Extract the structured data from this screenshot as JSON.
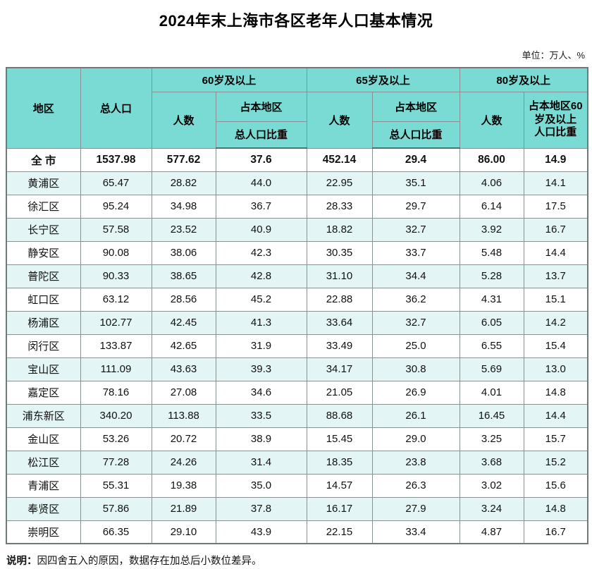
{
  "title": "2024年末上海市各区老年人口基本情况",
  "unit_note": "单位：万人、%",
  "colors": {
    "header_background": "#7adbd4",
    "stripe_row_background": "#e3f5f4",
    "grid_border": "#879393"
  },
  "table": {
    "header": {
      "region": "地区",
      "total_population": "总人口",
      "groups": [
        {
          "label": "60岁及以上",
          "count": "人数",
          "ratio_top": "占本地区",
          "ratio_bottom": "总人口比重"
        },
        {
          "label": "65岁及以上",
          "count": "人数",
          "ratio_top": "占本地区",
          "ratio_bottom": "总人口比重"
        },
        {
          "label": "80岁及以上",
          "count": "人数",
          "ratio": "占本地区60\n岁及以上\n人口比重"
        }
      ]
    },
    "rows": [
      {
        "region": "全 市",
        "total": "1537.98",
        "c60": "577.62",
        "r60": "37.6",
        "c65": "452.14",
        "r65": "29.4",
        "c80": "86.00",
        "r80": "14.9",
        "bold": true
      },
      {
        "region": "黄浦区",
        "total": "65.47",
        "c60": "28.82",
        "r60": "44.0",
        "c65": "22.95",
        "r65": "35.1",
        "c80": "4.06",
        "r80": "14.1"
      },
      {
        "region": "徐汇区",
        "total": "95.24",
        "c60": "34.98",
        "r60": "36.7",
        "c65": "28.33",
        "r65": "29.7",
        "c80": "6.14",
        "r80": "17.5"
      },
      {
        "region": "长宁区",
        "total": "57.58",
        "c60": "23.52",
        "r60": "40.9",
        "c65": "18.82",
        "r65": "32.7",
        "c80": "3.92",
        "r80": "16.7"
      },
      {
        "region": "静安区",
        "total": "90.08",
        "c60": "38.06",
        "r60": "42.3",
        "c65": "30.35",
        "r65": "33.7",
        "c80": "5.48",
        "r80": "14.4"
      },
      {
        "region": "普陀区",
        "total": "90.33",
        "c60": "38.65",
        "r60": "42.8",
        "c65": "31.10",
        "r65": "34.4",
        "c80": "5.28",
        "r80": "13.7"
      },
      {
        "region": "虹口区",
        "total": "63.12",
        "c60": "28.56",
        "r60": "45.2",
        "c65": "22.88",
        "r65": "36.2",
        "c80": "4.31",
        "r80": "15.1"
      },
      {
        "region": "杨浦区",
        "total": "102.77",
        "c60": "42.45",
        "r60": "41.3",
        "c65": "33.64",
        "r65": "32.7",
        "c80": "6.05",
        "r80": "14.2"
      },
      {
        "region": "闵行区",
        "total": "133.87",
        "c60": "42.65",
        "r60": "31.9",
        "c65": "33.49",
        "r65": "25.0",
        "c80": "6.55",
        "r80": "15.4"
      },
      {
        "region": "宝山区",
        "total": "111.09",
        "c60": "43.63",
        "r60": "39.3",
        "c65": "34.17",
        "r65": "30.8",
        "c80": "5.69",
        "r80": "13.0"
      },
      {
        "region": "嘉定区",
        "total": "78.16",
        "c60": "27.08",
        "r60": "34.6",
        "c65": "21.05",
        "r65": "26.9",
        "c80": "4.01",
        "r80": "14.8"
      },
      {
        "region": "浦东新区",
        "total": "340.20",
        "c60": "113.88",
        "r60": "33.5",
        "c65": "88.68",
        "r65": "26.1",
        "c80": "16.45",
        "r80": "14.4"
      },
      {
        "region": "金山区",
        "total": "53.26",
        "c60": "20.72",
        "r60": "38.9",
        "c65": "15.45",
        "r65": "29.0",
        "c80": "3.25",
        "r80": "15.7"
      },
      {
        "region": "松江区",
        "total": "77.28",
        "c60": "24.26",
        "r60": "31.4",
        "c65": "18.35",
        "r65": "23.8",
        "c80": "3.68",
        "r80": "15.2"
      },
      {
        "region": "青浦区",
        "total": "55.31",
        "c60": "19.38",
        "r60": "35.0",
        "c65": "14.57",
        "r65": "26.3",
        "c80": "3.02",
        "r80": "15.6"
      },
      {
        "region": "奉贤区",
        "total": "57.86",
        "c60": "21.89",
        "r60": "37.8",
        "c65": "16.17",
        "r65": "27.9",
        "c80": "3.24",
        "r80": "14.8"
      },
      {
        "region": "崇明区",
        "total": "66.35",
        "c60": "29.10",
        "r60": "43.9",
        "c65": "22.15",
        "r65": "33.4",
        "c80": "4.87",
        "r80": "16.7"
      }
    ]
  },
  "footnote": {
    "label": "说明：",
    "text": "因四舍五入的原因，数据存在加总后小数位差异。"
  }
}
